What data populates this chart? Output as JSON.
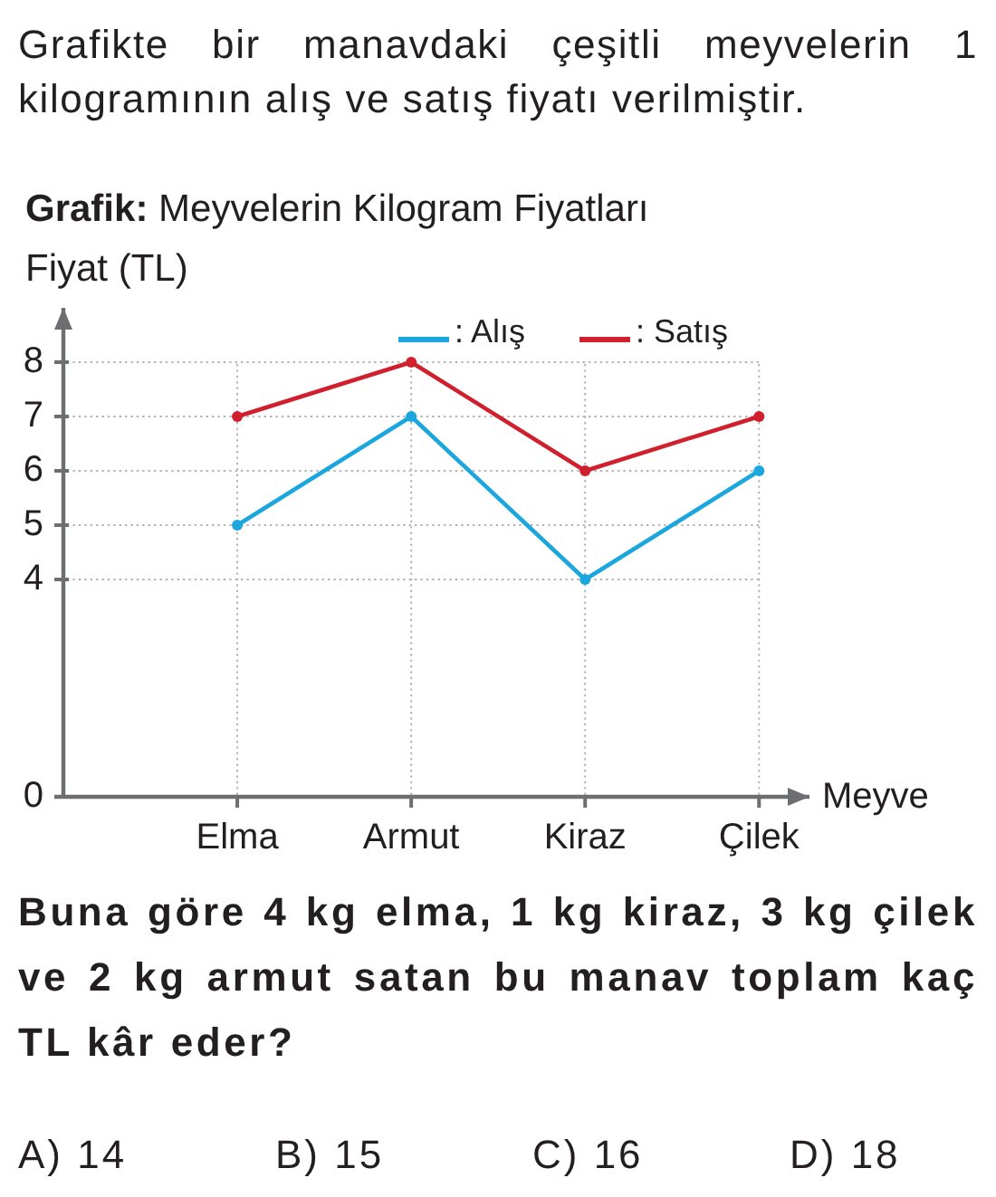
{
  "chart_data": {
    "type": "line",
    "title": "Grafik: Meyvelerin Kilogram Fiyatları",
    "xlabel": "Meyve",
    "ylabel": "Fiyat (TL)",
    "categories": [
      "Elma",
      "Armut",
      "Kiraz",
      "Çilek"
    ],
    "series": [
      {
        "name": ": Alış",
        "color": "#1ba7de",
        "values": [
          5,
          7,
          4,
          6
        ]
      },
      {
        "name": ": Satış",
        "color": "#d0202e",
        "values": [
          7,
          8,
          6,
          7
        ]
      }
    ],
    "ylim": [
      0,
      9
    ],
    "yticks": [
      0,
      4,
      5,
      6,
      7,
      8
    ],
    "grid": true,
    "legend": "top right",
    "marker": "circle",
    "line_style": "solid",
    "annotations": [
      "Grafikte bir manavdaki çeşitli meyvelerin 1 kilogramının alış ve satış fiyatı verilmiştir.",
      "Buna göre 4 kg elma, 1 kg kiraz, 3 kg çilek ve 2 kg armut satan bu manav toplam kaç TL kâr eder?",
      "A) 14",
      "B) 15",
      "C) 16",
      "D) 18"
    ]
  }
}
